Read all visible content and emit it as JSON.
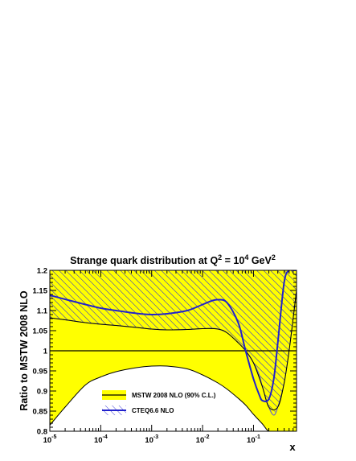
{
  "chart_data": {
    "type": "area",
    "title_main": "Strange quark distribution at Q",
    "title_sup1": "2",
    "title_mid": " = 10",
    "title_sup2": "4",
    "title_unit": " GeV",
    "title_sup3": "2",
    "xlabel": "x",
    "ylabel": "Ratio to MSTW 2008 NLO",
    "x_scale": "log",
    "xlim": [
      1e-05,
      0.7
    ],
    "ylim": [
      0.8,
      1.2
    ],
    "x_ticks": [
      {
        "value": 1e-05,
        "base": "10",
        "exp": "-5"
      },
      {
        "value": 0.0001,
        "base": "10",
        "exp": "-4"
      },
      {
        "value": 0.001,
        "base": "10",
        "exp": "-3"
      },
      {
        "value": 0.01,
        "base": "10",
        "exp": "-2"
      },
      {
        "value": 0.1,
        "base": "10",
        "exp": "-1"
      }
    ],
    "y_ticks": [
      {
        "value": 0.8,
        "label": "0.8"
      },
      {
        "value": 0.85,
        "label": "0.85"
      },
      {
        "value": 0.9,
        "label": "0.9"
      },
      {
        "value": 0.95,
        "label": "0.95"
      },
      {
        "value": 1.0,
        "label": "1"
      },
      {
        "value": 1.05,
        "label": "1.05"
      },
      {
        "value": 1.1,
        "label": "1.1"
      },
      {
        "value": 1.15,
        "label": "1.15"
      },
      {
        "value": 1.2,
        "label": "1.2"
      }
    ],
    "reference_line": 1.0,
    "legend_position": "bottom-left",
    "series": [
      {
        "name": "MSTW 2008 NLO (90% C.L.)",
        "kind": "band",
        "fill_color": "#ffff00",
        "edge_color": "#000000",
        "x": [
          1e-05,
          2e-05,
          5e-05,
          0.0001,
          0.0002,
          0.0005,
          0.001,
          0.002,
          0.005,
          0.01,
          0.02,
          0.03,
          0.05,
          0.07,
          0.1,
          0.15,
          0.2,
          0.3,
          0.4,
          0.5,
          0.6,
          0.7
        ],
        "upper": [
          1.2,
          1.2,
          1.2,
          1.2,
          1.2,
          1.2,
          1.2,
          1.2,
          1.2,
          1.2,
          1.2,
          1.2,
          1.2,
          1.2,
          1.2,
          1.2,
          1.2,
          1.2,
          1.2,
          1.2,
          1.2,
          1.2
        ],
        "lower": [
          0.815,
          0.86,
          0.915,
          0.935,
          0.948,
          0.958,
          0.962,
          0.962,
          0.955,
          0.94,
          0.92,
          0.905,
          0.882,
          0.865,
          0.842,
          0.818,
          0.8,
          0.8,
          0.8,
          0.8,
          0.8,
          0.8
        ]
      },
      {
        "name": "CTEQ6.6 NLO",
        "kind": "hatched_band_with_line",
        "color": "#2222cc",
        "hatch_color": "#5555dd",
        "x": [
          1e-05,
          2e-05,
          5e-05,
          0.0001,
          0.0002,
          0.0005,
          0.001,
          0.002,
          0.005,
          0.01,
          0.015,
          0.02,
          0.03,
          0.05,
          0.07,
          0.1,
          0.13,
          0.15,
          0.2,
          0.25,
          0.3,
          0.4,
          0.5,
          0.6,
          0.7
        ],
        "upper": [
          1.2,
          1.2,
          1.2,
          1.2,
          1.2,
          1.2,
          1.2,
          1.2,
          1.2,
          1.2,
          1.2,
          1.2,
          1.2,
          1.2,
          1.2,
          1.2,
          1.2,
          1.2,
          1.2,
          1.2,
          1.2,
          1.2,
          1.2,
          1.2,
          1.2
        ],
        "lower": [
          1.082,
          1.077,
          1.07,
          1.066,
          1.063,
          1.058,
          1.054,
          1.052,
          1.053,
          1.055,
          1.056,
          1.054,
          1.045,
          1.02,
          1.0,
          0.97,
          0.94,
          0.91,
          0.86,
          0.84,
          0.86,
          0.92,
          1.0,
          1.08,
          1.15
        ],
        "central": [
          1.138,
          1.128,
          1.115,
          1.106,
          1.1,
          1.093,
          1.09,
          1.092,
          1.1,
          1.115,
          1.124,
          1.127,
          1.12,
          1.07,
          1.0,
          0.93,
          0.89,
          0.876,
          0.88,
          0.93,
          1.02,
          1.17,
          1.2,
          1.2,
          1.2
        ]
      }
    ],
    "mstw_hatched_region": {
      "x": [
        1e-05,
        2e-05,
        5e-05,
        0.0001,
        0.0002,
        0.0005,
        0.001,
        0.002,
        0.005,
        0.01,
        0.02,
        0.03,
        0.05,
        0.07,
        0.1,
        0.15,
        0.2,
        0.3,
        0.4,
        0.5,
        0.6,
        0.7
      ],
      "upper": [
        1.2,
        1.2,
        1.2,
        1.2,
        1.2,
        1.2,
        1.2,
        1.2,
        1.2,
        1.2,
        1.2,
        1.2,
        1.2,
        1.2,
        1.2,
        1.2,
        1.2,
        1.2,
        1.2,
        1.2,
        1.2,
        1.2
      ],
      "lower": [
        1.082,
        1.077,
        1.07,
        1.066,
        1.063,
        1.058,
        1.054,
        1.052,
        1.053,
        1.055,
        1.054,
        1.045,
        1.02,
        1.0,
        0.97,
        0.91,
        0.86,
        0.86,
        0.92,
        1.0,
        1.08,
        1.15
      ]
    }
  }
}
